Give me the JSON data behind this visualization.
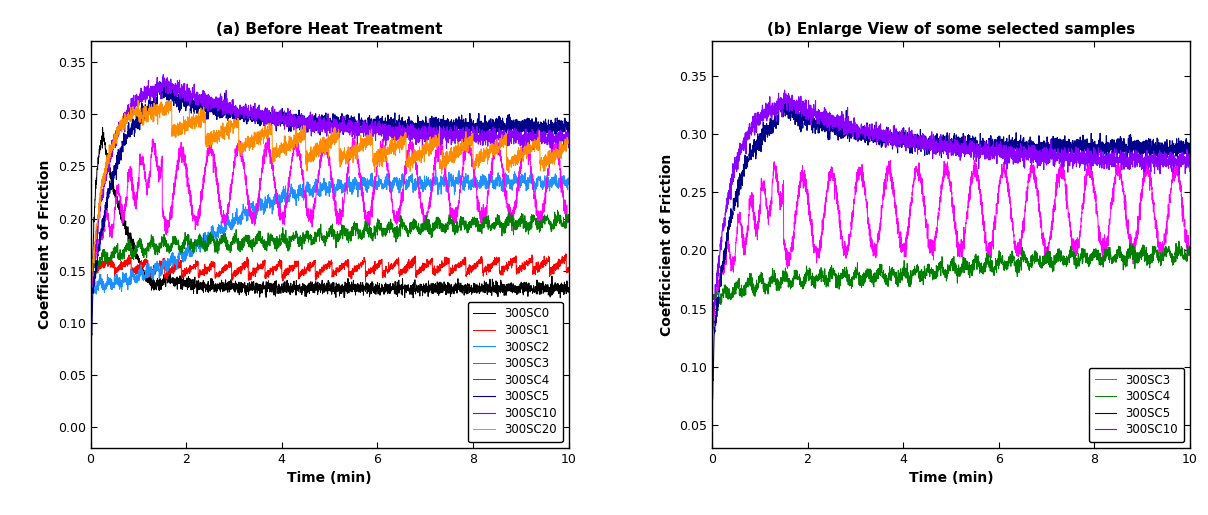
{
  "title_a": "(a) Before Heat Treatment",
  "title_b": "(b) Enlarge View of some selected samples",
  "xlabel": "Time (min)",
  "ylabel": "Coefficient of Friction",
  "ylabel_b": "Coefficicient of Friction",
  "xlim": [
    0,
    10
  ],
  "ylim_a": [
    -0.02,
    0.37
  ],
  "ylim_b": [
    0.03,
    0.38
  ],
  "yticks_a": [
    0.0,
    0.05,
    0.1,
    0.15,
    0.2,
    0.25,
    0.3,
    0.35
  ],
  "yticks_b": [
    0.05,
    0.1,
    0.15,
    0.2,
    0.25,
    0.3,
    0.35
  ],
  "xticks": [
    0,
    2,
    4,
    6,
    8,
    10
  ],
  "series": {
    "300SC0": {
      "color": "#000000",
      "lw": 0.7
    },
    "300SC1": {
      "color": "#ff0000",
      "lw": 0.7
    },
    "300SC2": {
      "color": "#1e90ff",
      "lw": 0.8
    },
    "300SC3": {
      "color": "#ff00ff",
      "lw": 0.7
    },
    "300SC4": {
      "color": "#008000",
      "lw": 0.7
    },
    "300SC5": {
      "color": "#00008b",
      "lw": 0.8
    },
    "300SC10": {
      "color": "#8b00ff",
      "lw": 0.8
    },
    "300SC20": {
      "color": "#ff8c00",
      "lw": 0.7
    }
  },
  "legend_a_order": [
    "300SC0",
    "300SC1",
    "300SC2",
    "300SC3",
    "300SC4",
    "300SC5",
    "300SC10",
    "300SC20"
  ],
  "legend_b_order": [
    "300SC3",
    "300SC4",
    "300SC5",
    "300SC10"
  ],
  "seed": 42,
  "n_points": 3000,
  "title_fontsize": 11,
  "label_fontsize": 10,
  "tick_fontsize": 9,
  "legend_fontsize": 8.5
}
